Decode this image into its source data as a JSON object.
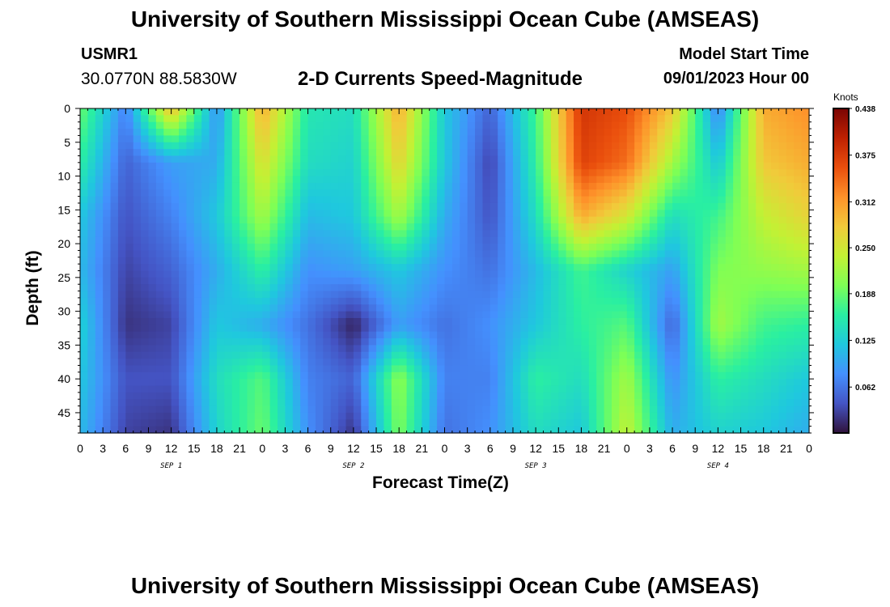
{
  "header": {
    "title": "University of Southern Mississippi Ocean Cube (AMSEAS)",
    "station": "USMR1",
    "coords": "30.0770N  88.5830W",
    "subtitle": "2-D Currents Speed-Magnitude",
    "model_start_label": "Model Start Time",
    "model_start_value": "09/01/2023 Hour 00"
  },
  "footer": {
    "title": "University of Southern Mississippi Ocean Cube (AMSEAS)"
  },
  "chart_data": {
    "type": "heatmap",
    "title": "2-D Currents Speed-Magnitude",
    "xlabel": "Forecast Time(Z)",
    "ylabel": "Depth (ft)",
    "x_tick_labels": [
      "0",
      "3",
      "6",
      "9",
      "12",
      "15",
      "18",
      "21",
      "0",
      "3",
      "6",
      "9",
      "12",
      "15",
      "18",
      "21",
      "0",
      "3",
      "6",
      "9",
      "12",
      "15",
      "18",
      "21",
      "0",
      "3",
      "6",
      "9",
      "12",
      "15",
      "18",
      "21",
      "0"
    ],
    "day_labels": [
      "SEP 1",
      "SEP 2",
      "SEP 3",
      "SEP 4"
    ],
    "y_tick_labels": [
      "0",
      "5",
      "10",
      "15",
      "20",
      "25",
      "30",
      "35",
      "40",
      "45"
    ],
    "xlim_hours": [
      0,
      96
    ],
    "ylim_ft": [
      0,
      48
    ],
    "colorbar": {
      "label": "Knots",
      "min": 0,
      "max": 0.438,
      "ticks": [
        "0.438",
        "0.375",
        "0.312",
        "0.250",
        "0.188",
        "0.125",
        "0.062"
      ],
      "colors": [
        "#30123b",
        "#4454c4",
        "#4490fe",
        "#1fc8de",
        "#29efa2",
        "#7eff55",
        "#c3f134",
        "#f1ca3a",
        "#fe922a",
        "#ea4f0d",
        "#be2102",
        "#7a0403"
      ]
    },
    "time_hours": [
      0,
      6,
      12,
      18,
      24,
      30,
      36,
      42,
      48,
      54,
      60,
      66,
      72,
      78,
      84,
      90,
      96
    ],
    "depth_ft": [
      0,
      8,
      16,
      24,
      32,
      40,
      48
    ],
    "speed_knots": [
      [
        0.19,
        0.07,
        0.29,
        0.08,
        0.3,
        0.15,
        0.14,
        0.3,
        0.12,
        0.05,
        0.17,
        0.38,
        0.36,
        0.28,
        0.07,
        0.3,
        0.32
      ],
      [
        0.16,
        0.05,
        0.09,
        0.1,
        0.26,
        0.14,
        0.13,
        0.27,
        0.12,
        0.03,
        0.16,
        0.37,
        0.34,
        0.22,
        0.12,
        0.28,
        0.3
      ],
      [
        0.12,
        0.04,
        0.07,
        0.12,
        0.22,
        0.11,
        0.12,
        0.22,
        0.1,
        0.04,
        0.14,
        0.3,
        0.25,
        0.14,
        0.17,
        0.24,
        0.27
      ],
      [
        0.11,
        0.03,
        0.05,
        0.1,
        0.16,
        0.08,
        0.09,
        0.12,
        0.08,
        0.06,
        0.11,
        0.17,
        0.13,
        0.09,
        0.2,
        0.21,
        0.22
      ],
      [
        0.13,
        0.02,
        0.03,
        0.12,
        0.1,
        0.06,
        0.01,
        0.09,
        0.06,
        0.08,
        0.12,
        0.16,
        0.18,
        0.05,
        0.22,
        0.17,
        0.16
      ],
      [
        0.12,
        0.04,
        0.04,
        0.14,
        0.18,
        0.07,
        0.05,
        0.21,
        0.07,
        0.07,
        0.16,
        0.14,
        0.22,
        0.08,
        0.16,
        0.14,
        0.12
      ],
      [
        0.11,
        0.03,
        0.02,
        0.13,
        0.19,
        0.08,
        0.02,
        0.2,
        0.06,
        0.08,
        0.14,
        0.12,
        0.24,
        0.1,
        0.13,
        0.12,
        0.1
      ]
    ]
  }
}
